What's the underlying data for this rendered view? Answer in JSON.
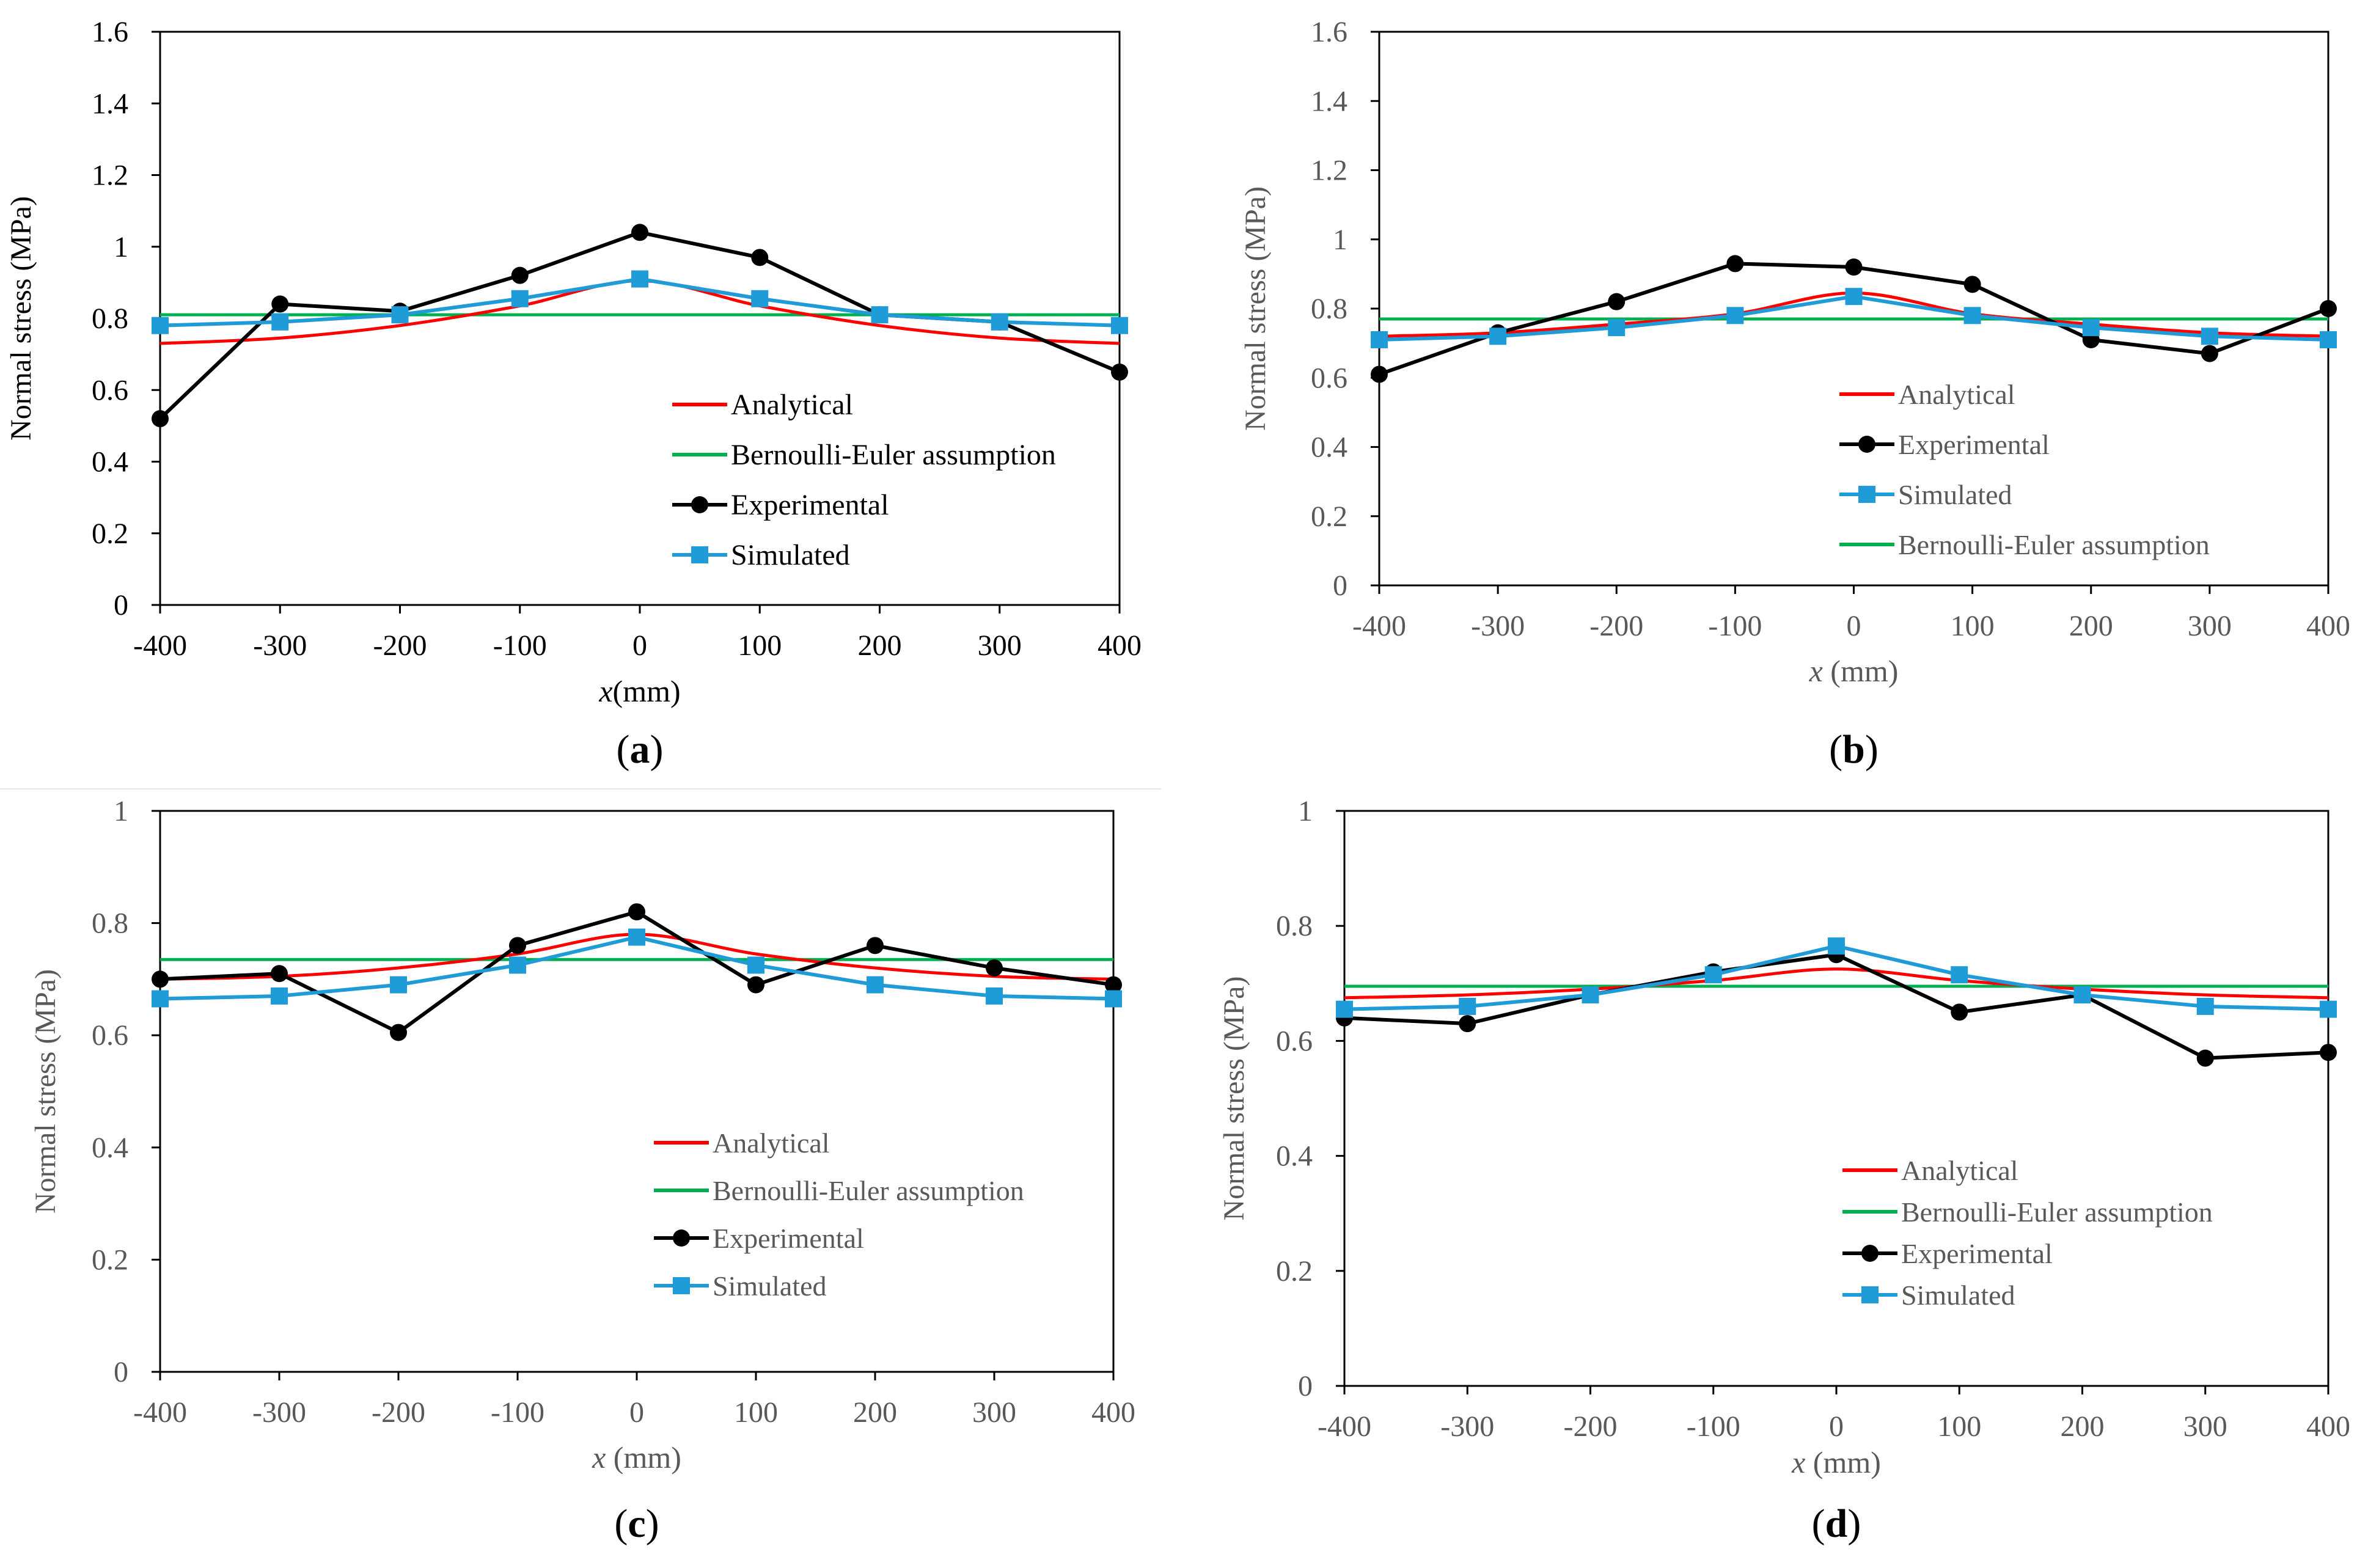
{
  "colors": {
    "analytical": "#ff0000",
    "bernoulli": "#00b050",
    "experimental": "#000000",
    "simulated": "#1f9bd7",
    "axis": "#000000",
    "tick_label_dark": "#000000",
    "tick_label_gray": "#595959"
  },
  "chart_data": [
    {
      "panel": "(a)",
      "type": "line",
      "ylabel": "Normal stress (MPa)",
      "xlabel_italic": "x",
      "xlabel_rest": "(mm)",
      "xlim": [
        -400,
        400
      ],
      "ylim": [
        0,
        1.6
      ],
      "xticks": [
        "-400",
        "-300",
        "-200",
        "-100",
        "0",
        "100",
        "200",
        "300",
        "400"
      ],
      "yticks": [
        "0",
        "0.2",
        "0.4",
        "0.6",
        "0.8",
        "1",
        "1.2",
        "1.4",
        "1.6"
      ],
      "grid": false,
      "legend_position": "bottom-right",
      "x": [
        -400,
        -300,
        -200,
        -100,
        0,
        100,
        200,
        300,
        400
      ],
      "series": [
        {
          "name": "Analytical",
          "style": "analytical",
          "values": [
            0.73,
            0.745,
            0.78,
            0.835,
            0.905,
            0.835,
            0.78,
            0.745,
            0.73
          ]
        },
        {
          "name": "Bernoulli-Euler assumption",
          "style": "bernoulli",
          "values": [
            0.81,
            0.81,
            0.81,
            0.81,
            0.81,
            0.81,
            0.81,
            0.81,
            0.81
          ]
        },
        {
          "name": "Experimental",
          "style": "experimental",
          "values": [
            0.52,
            0.84,
            0.82,
            0.92,
            1.04,
            0.97,
            0.81,
            0.79,
            0.65
          ]
        },
        {
          "name": "Simulated",
          "style": "simulated",
          "values": [
            0.78,
            0.79,
            0.81,
            0.855,
            0.91,
            0.855,
            0.81,
            0.79,
            0.78
          ]
        }
      ]
    },
    {
      "panel": "(b)",
      "type": "line",
      "ylabel": "Normal stress (MPa)",
      "xlabel_italic": "x",
      "xlabel_rest": " (mm)",
      "xlim": [
        -400,
        400
      ],
      "ylim": [
        0,
        1.6
      ],
      "xticks": [
        "-400",
        "-300",
        "-200",
        "-100",
        "0",
        "100",
        "200",
        "300",
        "400"
      ],
      "yticks": [
        "0",
        "0.2",
        "0.4",
        "0.6",
        "0.8",
        "1",
        "1.2",
        "1.4",
        "1.6"
      ],
      "grid": false,
      "legend_position": "bottom-right",
      "x": [
        -400,
        -300,
        -200,
        -100,
        0,
        100,
        200,
        300,
        400
      ],
      "series": [
        {
          "name": "Analytical",
          "style": "analytical",
          "values": [
            0.72,
            0.73,
            0.755,
            0.785,
            0.845,
            0.785,
            0.755,
            0.73,
            0.72
          ]
        },
        {
          "name": "Experimental",
          "style": "experimental",
          "values": [
            0.61,
            0.73,
            0.82,
            0.93,
            0.92,
            0.87,
            0.71,
            0.67,
            0.8
          ]
        },
        {
          "name": "Simulated",
          "style": "simulated",
          "values": [
            0.71,
            0.72,
            0.745,
            0.78,
            0.835,
            0.78,
            0.745,
            0.72,
            0.71
          ]
        },
        {
          "name": "Bernoulli-Euler assumption",
          "style": "bernoulli",
          "values": [
            0.77,
            0.77,
            0.77,
            0.77,
            0.77,
            0.77,
            0.77,
            0.77,
            0.77
          ]
        }
      ]
    },
    {
      "panel": "(c)",
      "type": "line",
      "ylabel": "Normal stress (MPa)",
      "xlabel_italic": "x",
      "xlabel_rest": " (mm)",
      "xlim": [
        -400,
        400
      ],
      "ylim": [
        0,
        1
      ],
      "xticks": [
        "-400",
        "-300",
        "-200",
        "-100",
        "0",
        "100",
        "200",
        "300",
        "400"
      ],
      "yticks": [
        "0",
        "0.2",
        "0.4",
        "0.6",
        "0.8",
        "1"
      ],
      "grid": false,
      "legend_position": "bottom-right",
      "x": [
        -400,
        -300,
        -200,
        -100,
        0,
        100,
        200,
        300,
        400
      ],
      "series": [
        {
          "name": "Analytical",
          "style": "analytical",
          "values": [
            0.7,
            0.705,
            0.72,
            0.745,
            0.78,
            0.745,
            0.72,
            0.705,
            0.7
          ]
        },
        {
          "name": "Bernoulli-Euler assumption",
          "style": "bernoulli",
          "values": [
            0.735,
            0.735,
            0.735,
            0.735,
            0.735,
            0.735,
            0.735,
            0.735,
            0.735
          ]
        },
        {
          "name": "Experimental",
          "style": "experimental",
          "values": [
            0.7,
            0.71,
            0.605,
            0.76,
            0.82,
            0.69,
            0.76,
            0.72,
            0.69
          ]
        },
        {
          "name": "Simulated",
          "style": "simulated",
          "values": [
            0.665,
            0.67,
            0.69,
            0.725,
            0.775,
            0.725,
            0.69,
            0.67,
            0.665
          ]
        }
      ]
    },
    {
      "panel": "(d)",
      "type": "line",
      "ylabel": "Normal stress (MPa)",
      "xlabel_italic": "x",
      "xlabel_rest": " (mm)",
      "xlim": [
        -400,
        400
      ],
      "ylim": [
        0,
        1
      ],
      "xticks": [
        "-400",
        "-300",
        "-200",
        "-100",
        "0",
        "100",
        "200",
        "300",
        "400"
      ],
      "yticks": [
        "0",
        "0.2",
        "0.4",
        "0.6",
        "0.8",
        "1"
      ],
      "grid": false,
      "legend_position": "bottom-right",
      "x": [
        -400,
        -300,
        -200,
        -100,
        0,
        100,
        200,
        300,
        400
      ],
      "series": [
        {
          "name": "Analytical",
          "style": "analytical",
          "values": [
            0.675,
            0.68,
            0.69,
            0.705,
            0.725,
            0.705,
            0.69,
            0.68,
            0.675
          ]
        },
        {
          "name": "Bernoulli-Euler assumption",
          "style": "bernoulli",
          "values": [
            0.695,
            0.695,
            0.695,
            0.695,
            0.695,
            0.695,
            0.695,
            0.695,
            0.695
          ]
        },
        {
          "name": "Experimental",
          "style": "experimental",
          "values": [
            0.64,
            0.63,
            0.68,
            0.72,
            0.75,
            0.65,
            0.68,
            0.57,
            0.58
          ]
        },
        {
          "name": "Simulated",
          "style": "simulated",
          "values": [
            0.655,
            0.66,
            0.68,
            0.715,
            0.765,
            0.715,
            0.68,
            0.66,
            0.655
          ]
        }
      ]
    }
  ]
}
